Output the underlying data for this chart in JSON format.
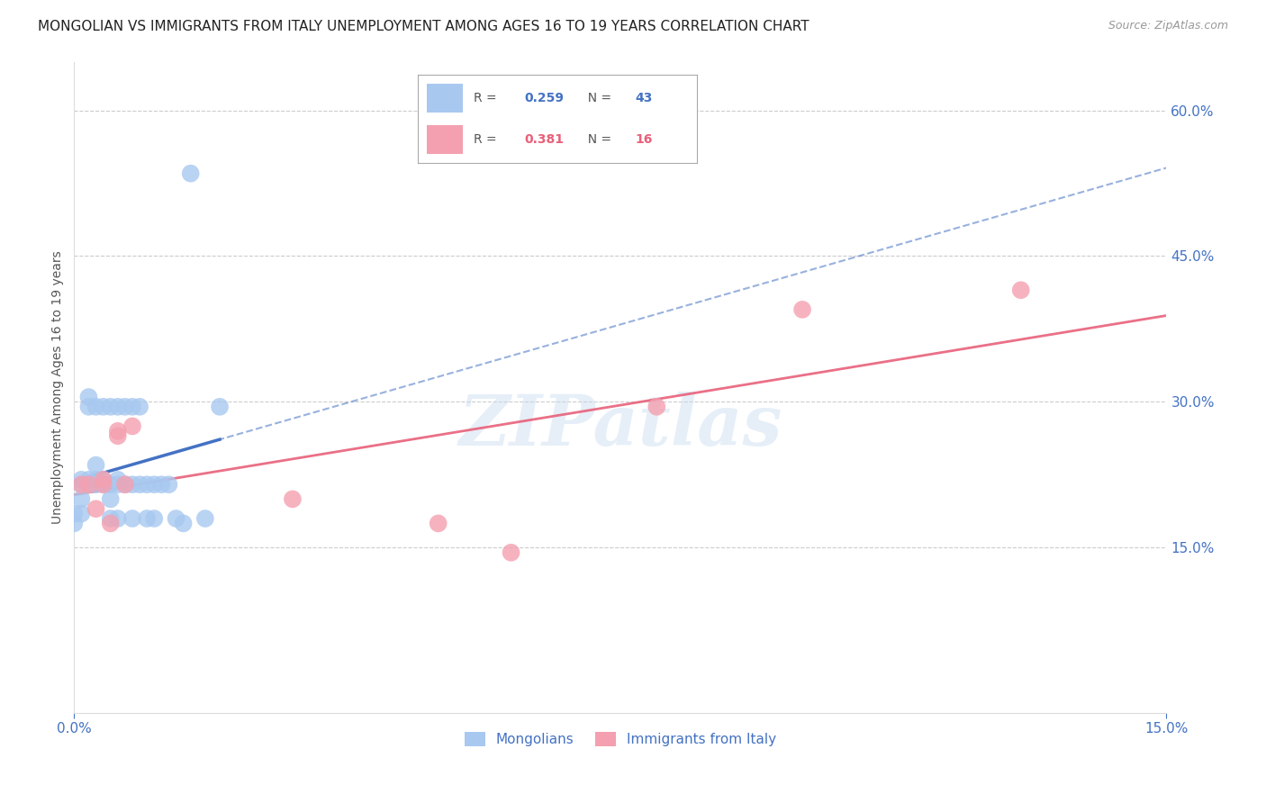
{
  "title": "MONGOLIAN VS IMMIGRANTS FROM ITALY UNEMPLOYMENT AMONG AGES 16 TO 19 YEARS CORRELATION CHART",
  "source": "Source: ZipAtlas.com",
  "ylabel": "Unemployment Among Ages 16 to 19 years",
  "xlim": [
    0.0,
    0.15
  ],
  "ylim": [
    -0.02,
    0.65
  ],
  "plot_ylim": [
    0.0,
    0.65
  ],
  "yticks_right": [
    0.15,
    0.3,
    0.45,
    0.6
  ],
  "xticks": [
    0.0,
    0.15
  ],
  "watermark": "ZIPatlas",
  "mongolians_x": [
    0.0,
    0.0,
    0.001,
    0.001,
    0.001,
    0.001,
    0.002,
    0.002,
    0.002,
    0.002,
    0.003,
    0.003,
    0.003,
    0.003,
    0.004,
    0.004,
    0.004,
    0.005,
    0.005,
    0.005,
    0.005,
    0.006,
    0.006,
    0.006,
    0.006,
    0.007,
    0.007,
    0.008,
    0.008,
    0.008,
    0.009,
    0.009,
    0.01,
    0.01,
    0.011,
    0.011,
    0.012,
    0.013,
    0.014,
    0.015,
    0.016,
    0.018,
    0.02
  ],
  "mongolians_y": [
    0.175,
    0.185,
    0.185,
    0.2,
    0.215,
    0.22,
    0.215,
    0.22,
    0.295,
    0.305,
    0.215,
    0.22,
    0.235,
    0.295,
    0.215,
    0.22,
    0.295,
    0.18,
    0.2,
    0.215,
    0.295,
    0.18,
    0.215,
    0.22,
    0.295,
    0.215,
    0.295,
    0.18,
    0.215,
    0.295,
    0.215,
    0.295,
    0.18,
    0.215,
    0.18,
    0.215,
    0.215,
    0.215,
    0.18,
    0.175,
    0.535,
    0.18,
    0.295
  ],
  "italy_x": [
    0.001,
    0.002,
    0.003,
    0.004,
    0.004,
    0.005,
    0.006,
    0.006,
    0.007,
    0.008,
    0.03,
    0.05,
    0.06,
    0.08,
    0.1,
    0.13
  ],
  "italy_y": [
    0.215,
    0.215,
    0.19,
    0.215,
    0.22,
    0.175,
    0.265,
    0.27,
    0.215,
    0.275,
    0.2,
    0.175,
    0.145,
    0.295,
    0.395,
    0.415
  ],
  "mongolian_color": "#a8c8f0",
  "italy_color": "#f4a0b0",
  "mongolian_trend_color": "#4472c4",
  "italy_trend_color": "#e8607a",
  "mongolian_R": 0.259,
  "mongolian_N": 43,
  "italy_R": 0.381,
  "italy_N": 16,
  "legend_mongolians_label": "Mongolians",
  "legend_italy_label": "Immigrants from Italy",
  "background_color": "#ffffff",
  "grid_color": "#cccccc",
  "title_color": "#222222",
  "axis_label_color": "#555555",
  "tick_label_color": "#4472c4",
  "title_fontsize": 11,
  "source_fontsize": 9,
  "axis_label_fontsize": 10,
  "tick_fontsize": 11
}
